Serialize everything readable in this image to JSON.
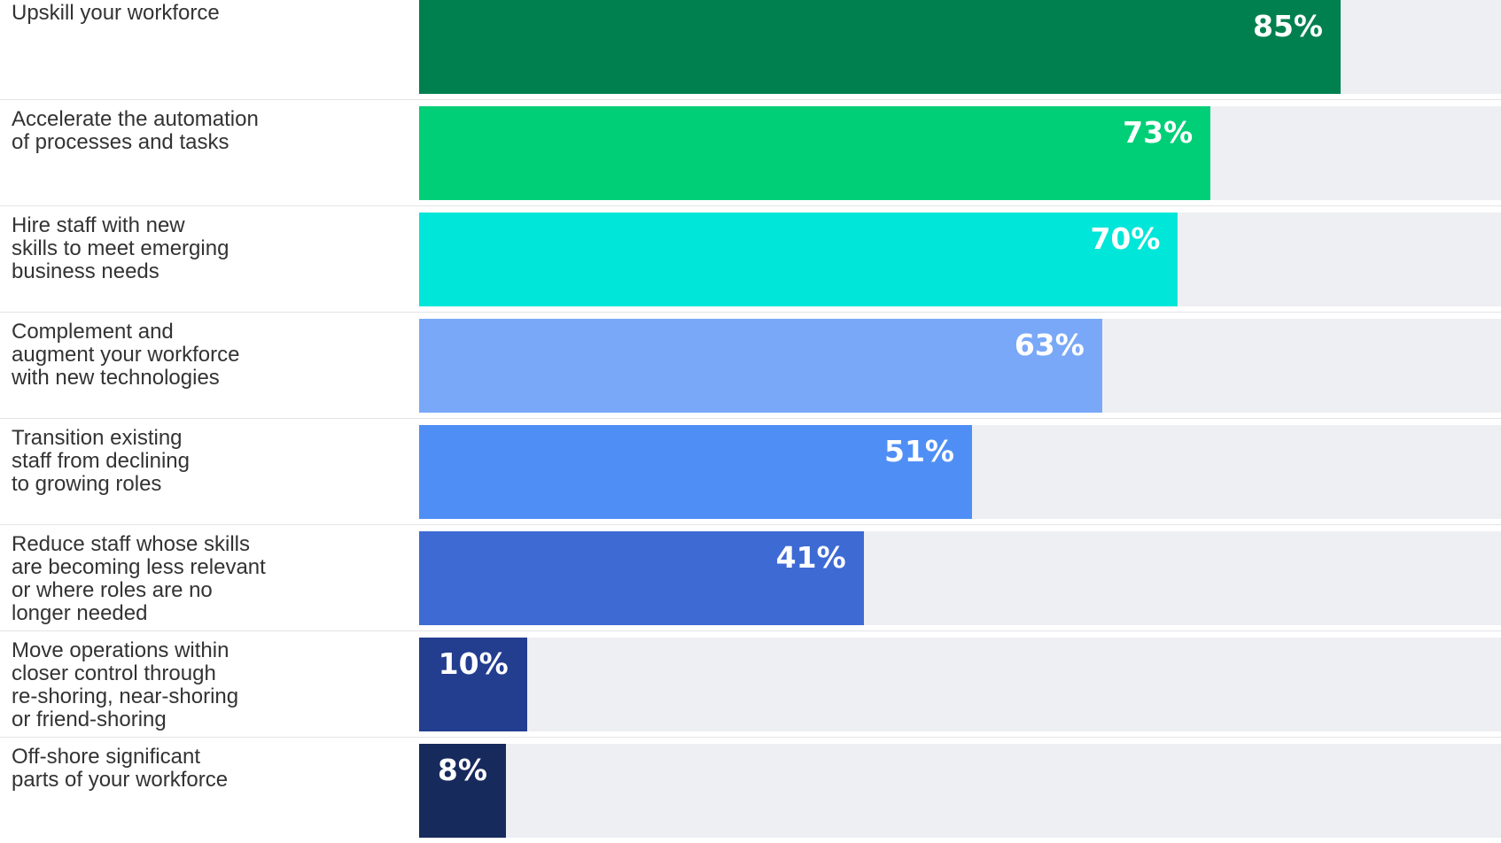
{
  "chart_data": {
    "type": "bar",
    "orientation": "horizontal",
    "categories": [
      "Upskill your workforce",
      "Accelerate the automation\nof processes and tasks",
      "Hire staff with new\nskills to meet emerging\nbusiness needs",
      "Complement and\naugment your workforce\nwith new technologies",
      "Transition existing\nstaff from declining\nto growing roles",
      "Reduce staff whose skills\nare becoming less relevant\nor where roles are no\nlonger needed",
      "Move operations within\ncloser control through\nre-shoring, near-shoring\nor friend-shoring",
      "Off-shore significant\nparts of your workforce"
    ],
    "values": [
      85,
      73,
      70,
      63,
      51,
      41,
      10,
      8
    ],
    "value_labels": [
      "85%",
      "73%",
      "70%",
      "63%",
      "51%",
      "41%",
      "10%",
      "8%"
    ],
    "unit": "%",
    "xlim": [
      0,
      100
    ],
    "title": "",
    "xlabel": "",
    "ylabel": "",
    "grid": false,
    "legend": "none",
    "colors": [
      "#00804f",
      "#00cf77",
      "#00e6d8",
      "#7aa8f8",
      "#4f8ff5",
      "#3e6ad4",
      "#233d8f",
      "#172a5c"
    ],
    "track_color": "#eeeff3"
  }
}
